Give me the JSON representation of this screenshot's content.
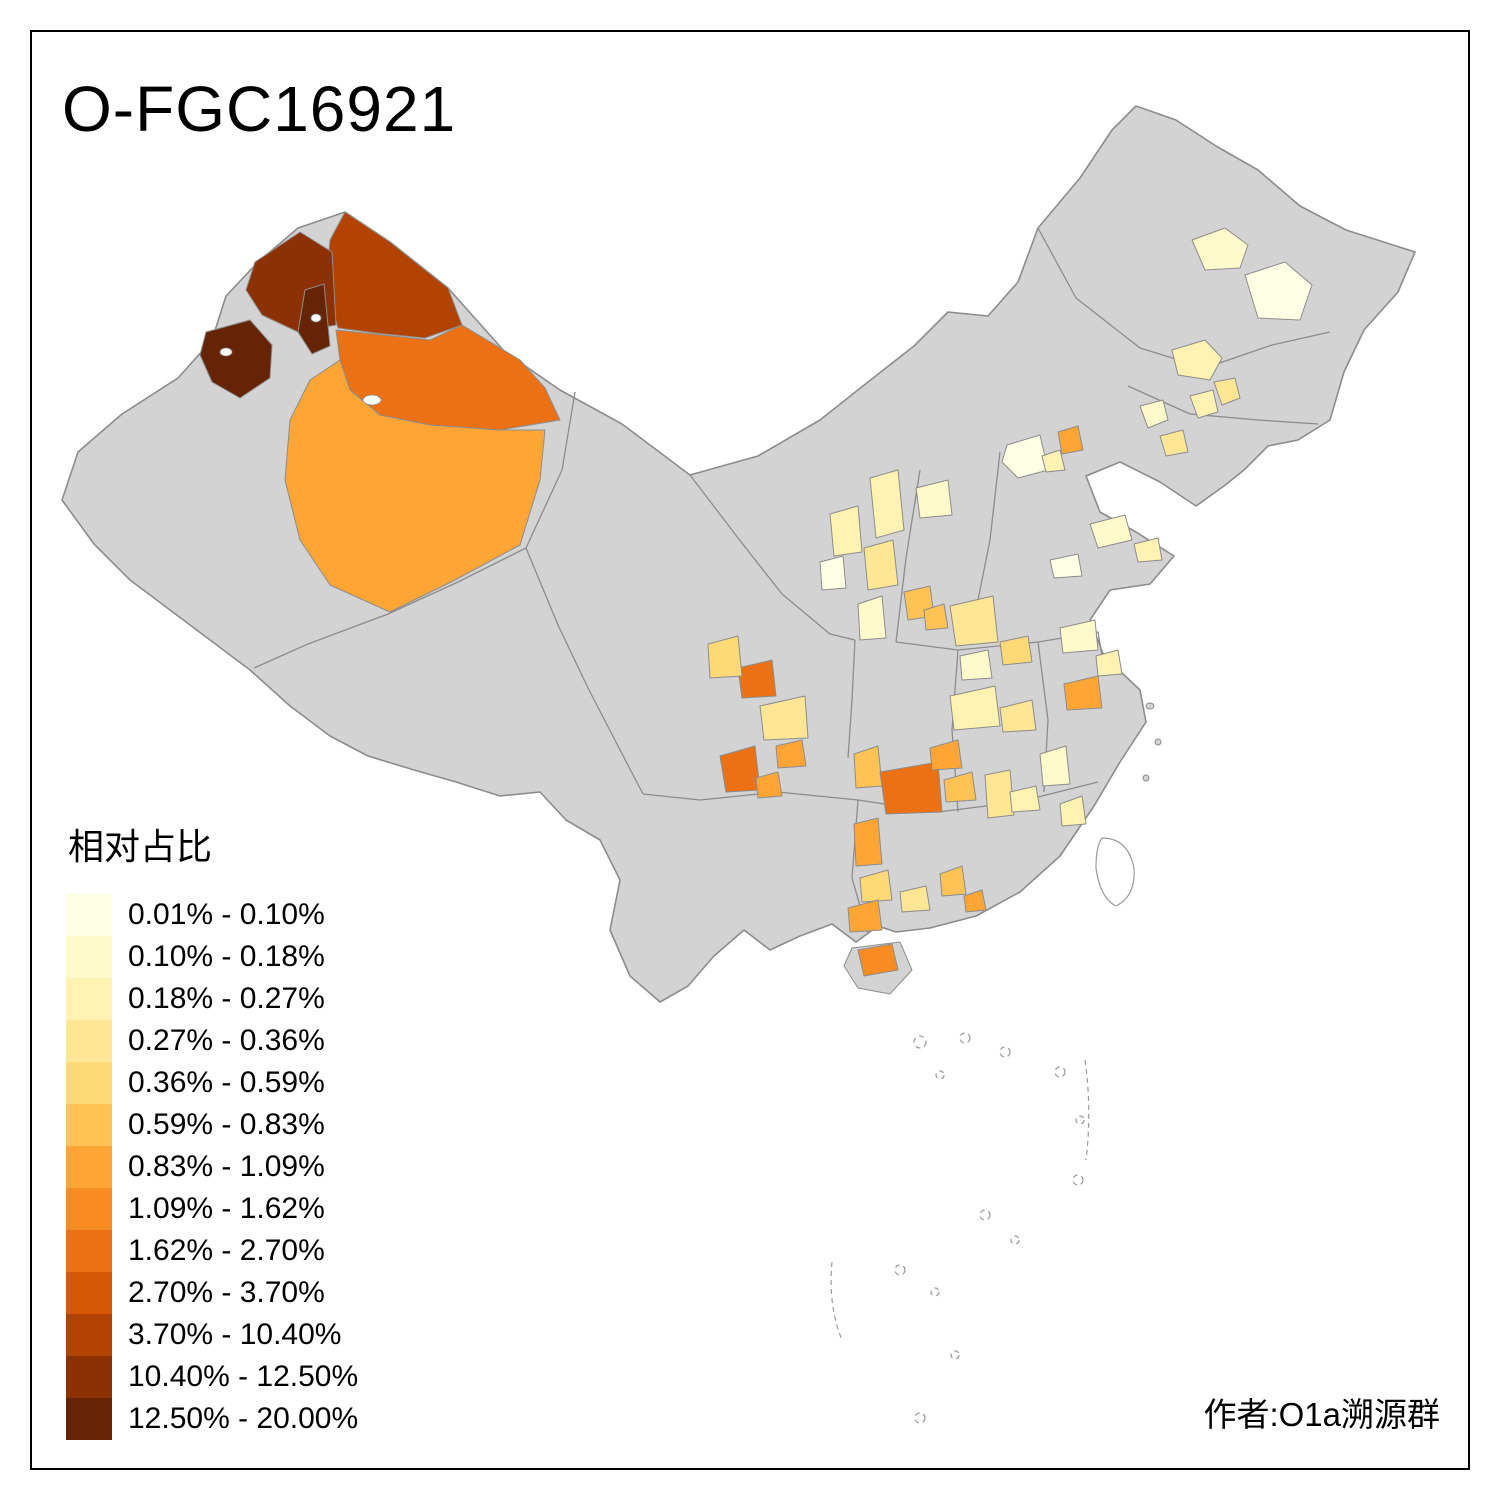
{
  "title": "O-FGC16921",
  "credit": "作者:O1a溯源群",
  "legend": {
    "title": "相对占比",
    "items": [
      {
        "label": "0.01% - 0.10%",
        "color": "#FFFFE5"
      },
      {
        "label": "0.10% - 0.18%",
        "color": "#FFF9CC"
      },
      {
        "label": "0.18% - 0.27%",
        "color": "#FFF2B2"
      },
      {
        "label": "0.27% - 0.36%",
        "color": "#FEE695"
      },
      {
        "label": "0.36% - 0.59%",
        "color": "#FED976"
      },
      {
        "label": "0.59% - 0.83%",
        "color": "#FEC255"
      },
      {
        "label": "0.83% - 1.09%",
        "color": "#FEA536"
      },
      {
        "label": "1.09% - 1.62%",
        "color": "#F88B22"
      },
      {
        "label": "1.62% - 2.70%",
        "color": "#EC7014"
      },
      {
        "label": "2.70% - 3.70%",
        "color": "#D65708"
      },
      {
        "label": "3.70% - 10.40%",
        "color": "#B24302"
      },
      {
        "label": "10.40% - 12.50%",
        "color": "#8C3104"
      },
      {
        "label": "12.50% - 20.00%",
        "color": "#642405"
      }
    ]
  },
  "map": {
    "background": "#FFFFFF",
    "land_fill": "#D3D3D3",
    "border_color": "#8C8C8C",
    "frame_color": "#000000"
  }
}
